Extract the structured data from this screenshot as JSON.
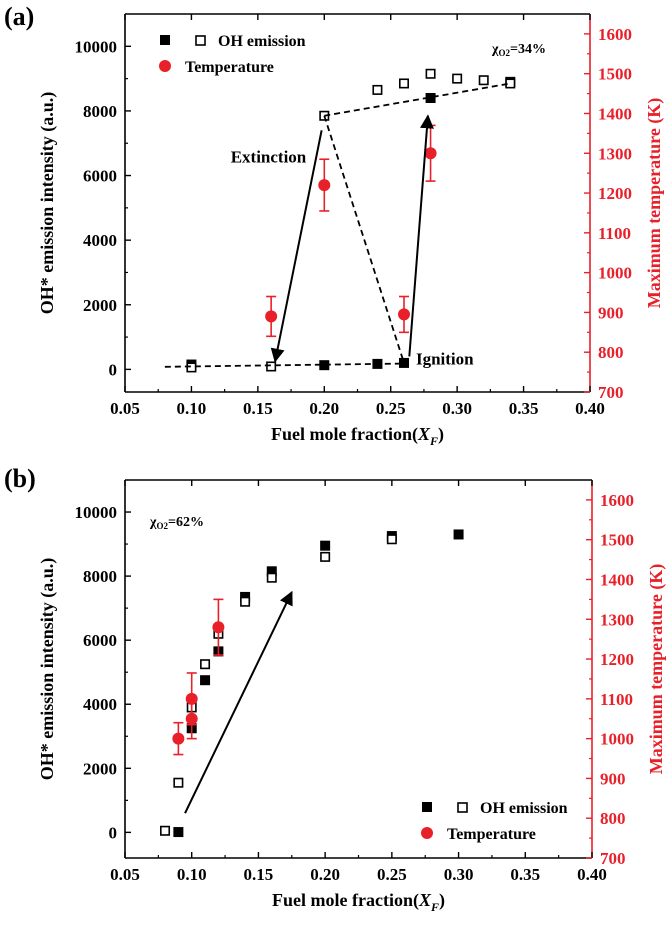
{
  "chart_data": [
    {
      "panel": "(a)",
      "type": "scatter",
      "xlabel": "Fuel mole fraction(X_F)",
      "xlabel_main": "Fuel mole fraction(",
      "xlabel_var": "X",
      "xlabel_sub": "F",
      "xlabel_close": ")",
      "ylabel": "OH* emission intensity (a.u.)",
      "y2label": "Maximum temperature (K)",
      "xlim": [
        0.05,
        0.4
      ],
      "ylim": [
        -700,
        11000
      ],
      "y2lim": [
        700,
        1650
      ],
      "xticks": [
        "0.05",
        "0.10",
        "0.15",
        "0.20",
        "0.25",
        "0.30",
        "0.35",
        "0.40"
      ],
      "yticks": [
        "0",
        "2000",
        "4000",
        "6000",
        "8000",
        "10000"
      ],
      "y2ticks": [
        "700",
        "800",
        "900",
        "1000",
        "1100",
        "1200",
        "1300",
        "1400",
        "1500",
        "1600"
      ],
      "chi_label": "χ",
      "chi_sub": "O2",
      "chi_value": "=34%",
      "legend": {
        "oh": "OH emission",
        "temp": "Temperature",
        "position": "top-left"
      },
      "series": [
        {
          "name": "OH emission",
          "marker": "filled-square",
          "color": "#000000",
          "x": [
            0.1,
            0.2,
            0.24,
            0.26,
            0.28,
            0.34
          ],
          "y": [
            150,
            130,
            170,
            200,
            8400,
            8900
          ]
        },
        {
          "name": "OH emission",
          "marker": "open-square",
          "color": "#000000",
          "x": [
            0.1,
            0.16,
            0.2,
            0.24,
            0.26,
            0.28,
            0.3,
            0.32,
            0.34
          ],
          "y": [
            60,
            90,
            7850,
            8650,
            8850,
            9150,
            9000,
            8950,
            8850
          ]
        },
        {
          "name": "Temperature",
          "marker": "circle",
          "color": "#e8202a",
          "x": [
            0.16,
            0.2,
            0.26,
            0.28
          ],
          "y": [
            890,
            1220,
            895,
            1300
          ],
          "err": [
            50,
            65,
            45,
            70
          ]
        }
      ],
      "annotations": [
        {
          "text": "Extinction"
        },
        {
          "text": "Ignition"
        }
      ]
    },
    {
      "panel": "(b)",
      "type": "scatter",
      "xlabel": "Fuel mole fraction(X_F)",
      "xlabel_main": "Fuel mole fraction(",
      "xlabel_var": "X",
      "xlabel_sub": "F",
      "xlabel_close": ")",
      "ylabel": "OH* emission intensity (a.u.)",
      "y2label": "Maximum temperature (K)",
      "xlim": [
        0.05,
        0.4
      ],
      "ylim": [
        -800,
        11000
      ],
      "y2lim": [
        700,
        1650
      ],
      "xticks": [
        "0.05",
        "0.10",
        "0.15",
        "0.20",
        "0.25",
        "0.30",
        "0.35",
        "0.40"
      ],
      "yticks": [
        "0",
        "2000",
        "4000",
        "6000",
        "8000",
        "10000"
      ],
      "y2ticks": [
        "700",
        "800",
        "900",
        "1000",
        "1100",
        "1200",
        "1300",
        "1400",
        "1500",
        "1600"
      ],
      "chi_label": "χ",
      "chi_sub": "O2",
      "chi_value": "=62%",
      "legend": {
        "oh": "OH emission",
        "temp": "Temperature",
        "position": "bottom-right"
      },
      "series": [
        {
          "name": "OH emission",
          "marker": "filled-square",
          "color": "#000000",
          "x": [
            0.09,
            0.1,
            0.11,
            0.12,
            0.14,
            0.16,
            0.2,
            0.25,
            0.3
          ],
          "y": [
            10,
            3250,
            4750,
            5650,
            7350,
            8150,
            8950,
            9250,
            9300
          ]
        },
        {
          "name": "OH emission",
          "marker": "open-square",
          "color": "#000000",
          "x": [
            0.08,
            0.09,
            0.1,
            0.11,
            0.12,
            0.14,
            0.16,
            0.2,
            0.25
          ],
          "y": [
            50,
            1550,
            3900,
            5250,
            6200,
            7200,
            7950,
            8600,
            9150
          ]
        },
        {
          "name": "Temperature",
          "marker": "circle",
          "color": "#e8202a",
          "x": [
            0.09,
            0.1,
            0.1,
            0.12
          ],
          "y": [
            1000,
            1050,
            1100,
            1280
          ],
          "err": [
            40,
            50,
            65,
            70
          ]
        }
      ],
      "annotations": []
    }
  ]
}
